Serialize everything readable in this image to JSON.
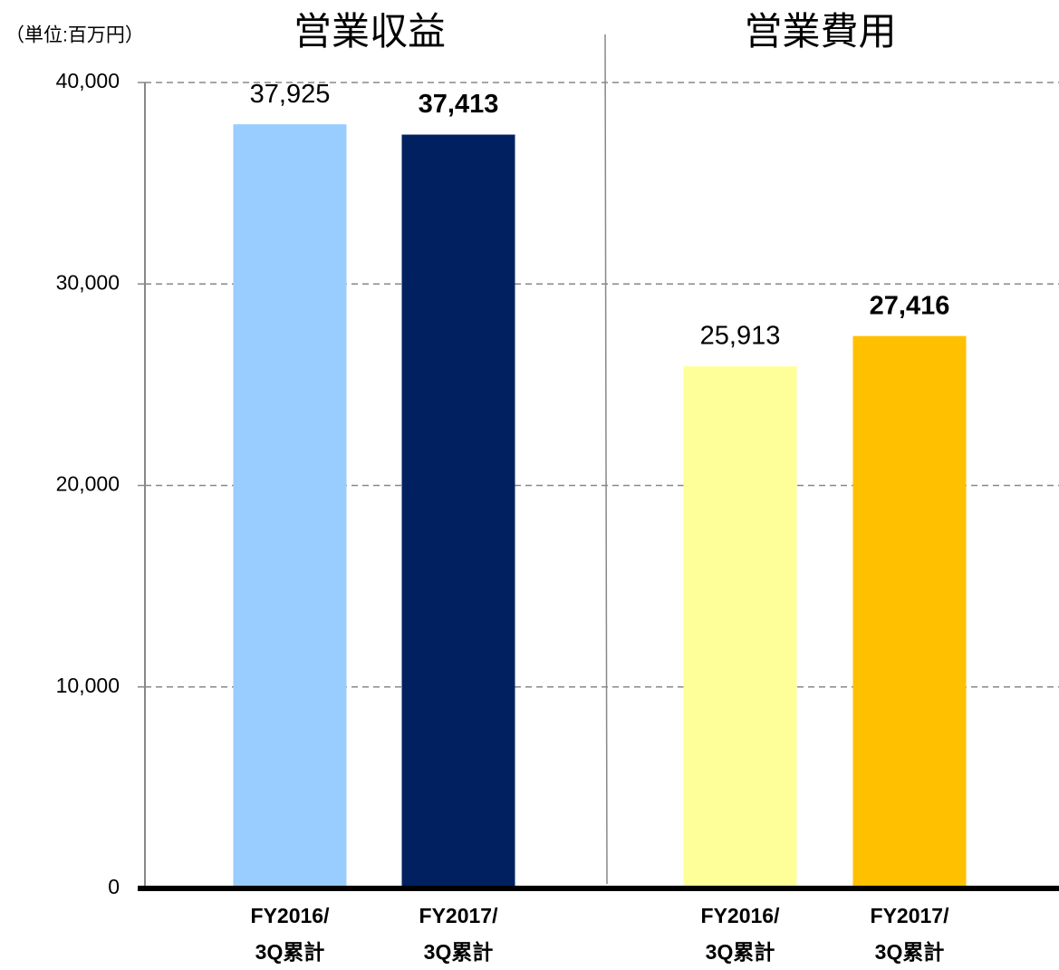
{
  "chart_data": {
    "type": "bar",
    "unit_label": "（単位:百万円）",
    "group_titles": [
      "営業収益",
      "営業費用"
    ],
    "categories": [
      "FY2016/\n3Q累計",
      "FY2017/\n3Q累計",
      "FY2016/\n3Q累計",
      "FY2017/\n3Q累計"
    ],
    "values": [
      37925,
      37413,
      25913,
      27416
    ],
    "value_labels": [
      "37,925",
      "37,413",
      "25,913",
      "27,416"
    ],
    "colors": [
      "#99ccff",
      "#002060",
      "#ffff99",
      "#ffc000"
    ],
    "ylim": [
      0,
      40000
    ],
    "yticks": [
      0,
      {
        "value": 10000,
        "label": "10,000"
      },
      {
        "value": 20000,
        "label": "20,000"
      },
      {
        "value": 30000,
        "label": "30,000"
      },
      {
        "value": 40000,
        "label": "40,000"
      }
    ],
    "grid": true
  }
}
